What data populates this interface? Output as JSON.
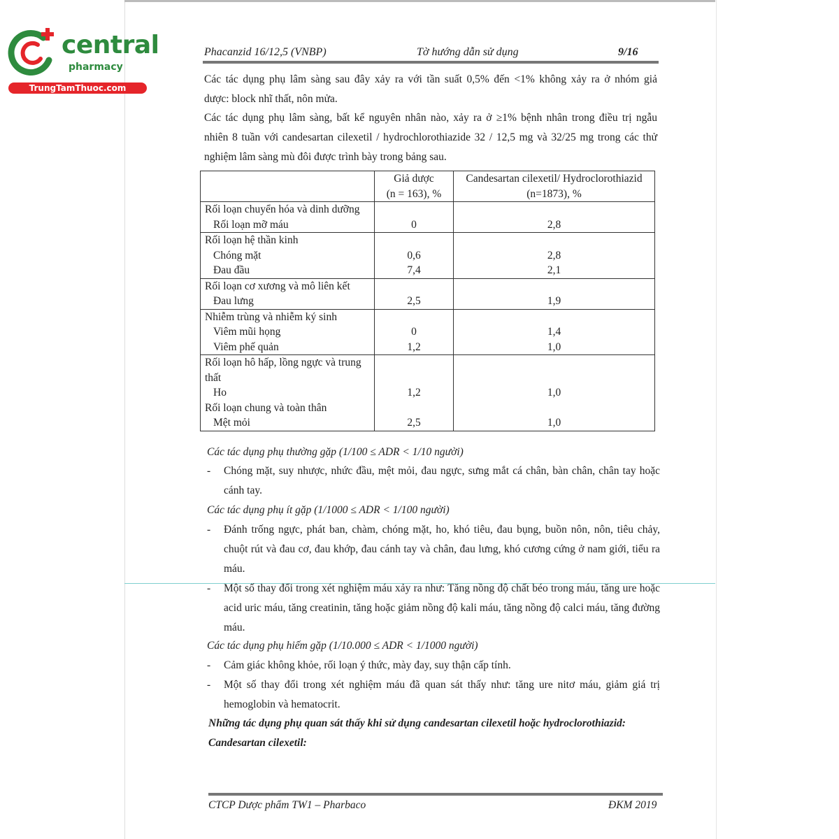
{
  "logo": {
    "brand": "central",
    "sub": "pharmacy",
    "site": "TrungTamThuoc.com",
    "colors": {
      "green": "#2e8b3e",
      "red": "#e5252a"
    }
  },
  "header": {
    "left": "Phacanzid 16/12,5 (VNBP)",
    "center": "Tờ hướng dẫn sử dụng",
    "right": "9/16"
  },
  "intro": [
    [
      "Các tác dụng phụ lâm sàng sau đây xảy ra với tần suất 0,5% đến <1% không xảy ra ở nhóm giả",
      "dược: block nhĩ thất, nôn mửa."
    ],
    [
      "Các tác dụng phụ lâm sàng, bất kể nguyên nhân nào, xảy ra ở ≥1% bệnh nhân trong điều trị ngẫu",
      "nhiên 8 tuần với candesartan cilexetil / hydrochlorothiazide 32 / 12,5 mg và 32/25 mg trong các thử",
      "nghiệm lâm sàng mù đôi được trình bày trong bảng sau."
    ]
  ],
  "table": {
    "headers": [
      "",
      "Giả dược",
      "(n = 163), %",
      "Candesartan cilexetil/ Hydroclorothiazid",
      "(n=1873), %"
    ],
    "groups": [
      {
        "label": "Rối loạn chuyển hóa và dinh dưỡng",
        "rows": [
          {
            "name": "Rối loạn mỡ máu",
            "placebo": "0",
            "drug": "2,8"
          }
        ]
      },
      {
        "label": "Rối loạn hệ thần kinh",
        "rows": [
          {
            "name": "Chóng mặt",
            "placebo": "0,6",
            "drug": "2,8"
          },
          {
            "name": "Đau đầu",
            "placebo": "7,4",
            "drug": "2,1"
          }
        ]
      },
      {
        "label": "Rối loạn cơ xương và mô liên kết",
        "rows": [
          {
            "name": "Đau lưng",
            "placebo": "2,5",
            "drug": "1,9"
          }
        ]
      },
      {
        "label": "Nhiễm trùng và nhiễm ký sinh",
        "rows": [
          {
            "name": "Viêm mũi họng",
            "placebo": "0",
            "drug": "1,4"
          },
          {
            "name": "Viêm phế quản",
            "placebo": "1,2",
            "drug": "1,0"
          }
        ]
      },
      {
        "label": "Rối loạn hô hấp, lồng ngực và trung thất",
        "rows": [
          {
            "name": "Ho",
            "placebo": "1,2",
            "drug": "1,0"
          }
        ],
        "label2": "Rối loạn chung và toàn thân",
        "rows2": [
          {
            "name": "Mệt mỏi",
            "placebo": "2,5",
            "drug": "1,0"
          }
        ]
      }
    ]
  },
  "sections": {
    "common": "Các tác dụng phụ thường gặp (1/100 ≤ ADR < 1/10 người)",
    "common_items": [
      "Chóng mặt, suy nhược, nhức đầu, mệt mỏi, đau ngực, sưng mắt cá chân, bàn chân, chân tay hoặc cánh tay."
    ],
    "uncommon": "Các tác dụng phụ ít gặp (1/1000 ≤ ADR < 1/100 người)",
    "uncommon_items": [
      "Đánh trống ngực, phát ban, chàm, chóng mặt, ho, khó tiêu, đau bụng, buồn nôn, nôn, tiêu chảy, chuột rút và đau cơ, đau khớp, đau cánh tay và chân, đau lưng, khó cương cứng ở nam giới, tiểu ra máu.",
      "Một số thay đổi trong xét nghiệm máu xảy ra như: Tăng nồng độ chất béo trong máu, tăng ure hoặc acid uric máu, tăng creatinin, tăng hoặc giảm nồng độ kali máu, tăng nồng độ calci máu, tăng đường máu."
    ],
    "rare": "Các tác dụng phụ hiếm gặp (1/10.000 ≤ ADR < 1/1000 người)",
    "rare_items": [
      "Cảm giác không khỏe, rối loạn ý thức, mày đay, suy thận cấp tính.",
      "Một số thay đổi trong xét nghiệm máu đã quan sát thấy như: tăng ure nitơ máu, giảm giá trị hemoglobin và hematocrit."
    ],
    "observed": "Những tác dụng phụ quan sát thấy khi sử dụng candesartan cilexetil hoặc hydroclorothiazid:",
    "candesartan": "Candesartan cilexetil:"
  },
  "footer": {
    "left": "CTCP Dược phẩm TW1 – Pharbaco",
    "right": "ĐKM 2019"
  }
}
